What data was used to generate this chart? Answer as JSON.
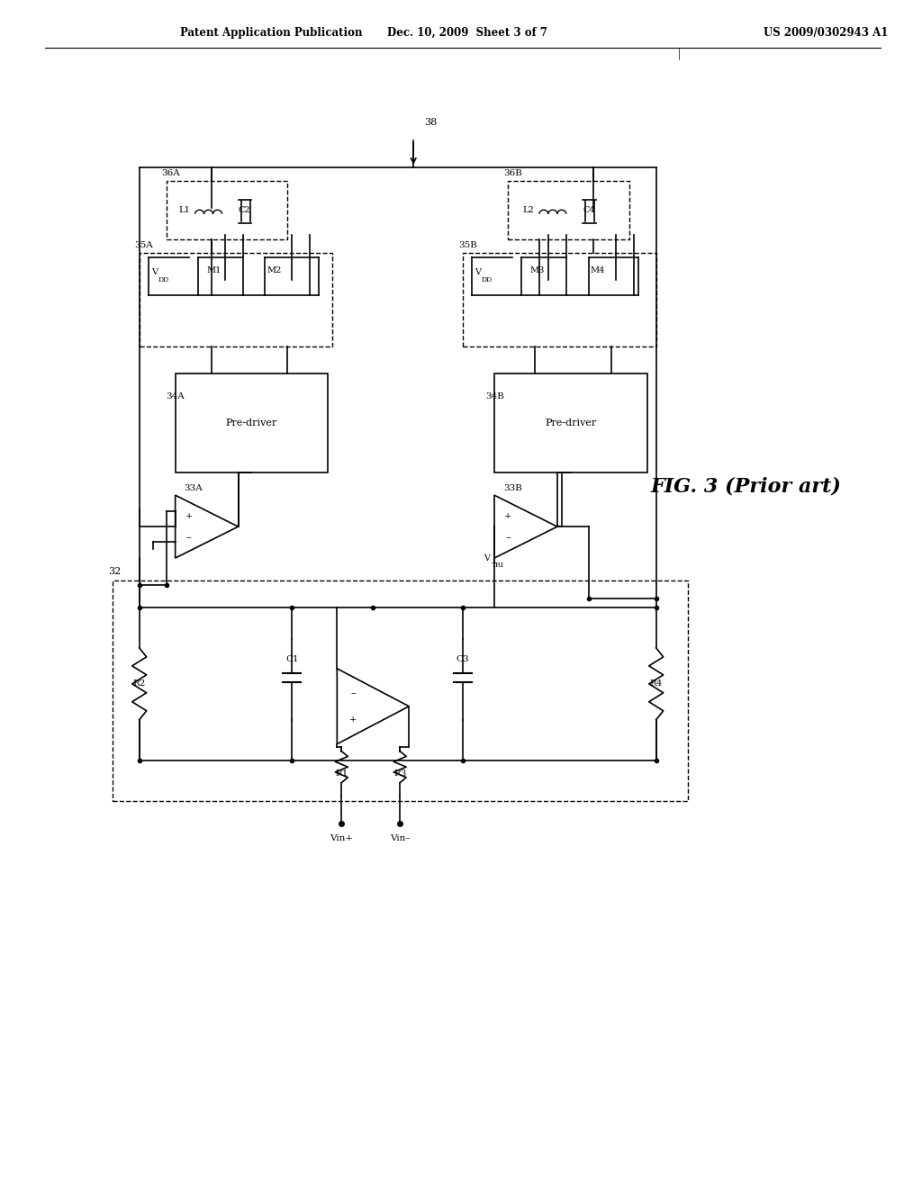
{
  "title": "FIG. 3 (Prior art)",
  "header_left": "Patent Application Publication",
  "header_center": "Dec. 10, 2009  Sheet 3 of 7",
  "header_right": "US 2009/0302943 A1",
  "bg_color": "#ffffff",
  "line_color": "#000000",
  "dashed_color": "#000000",
  "fig_width": 10.24,
  "fig_height": 13.2
}
